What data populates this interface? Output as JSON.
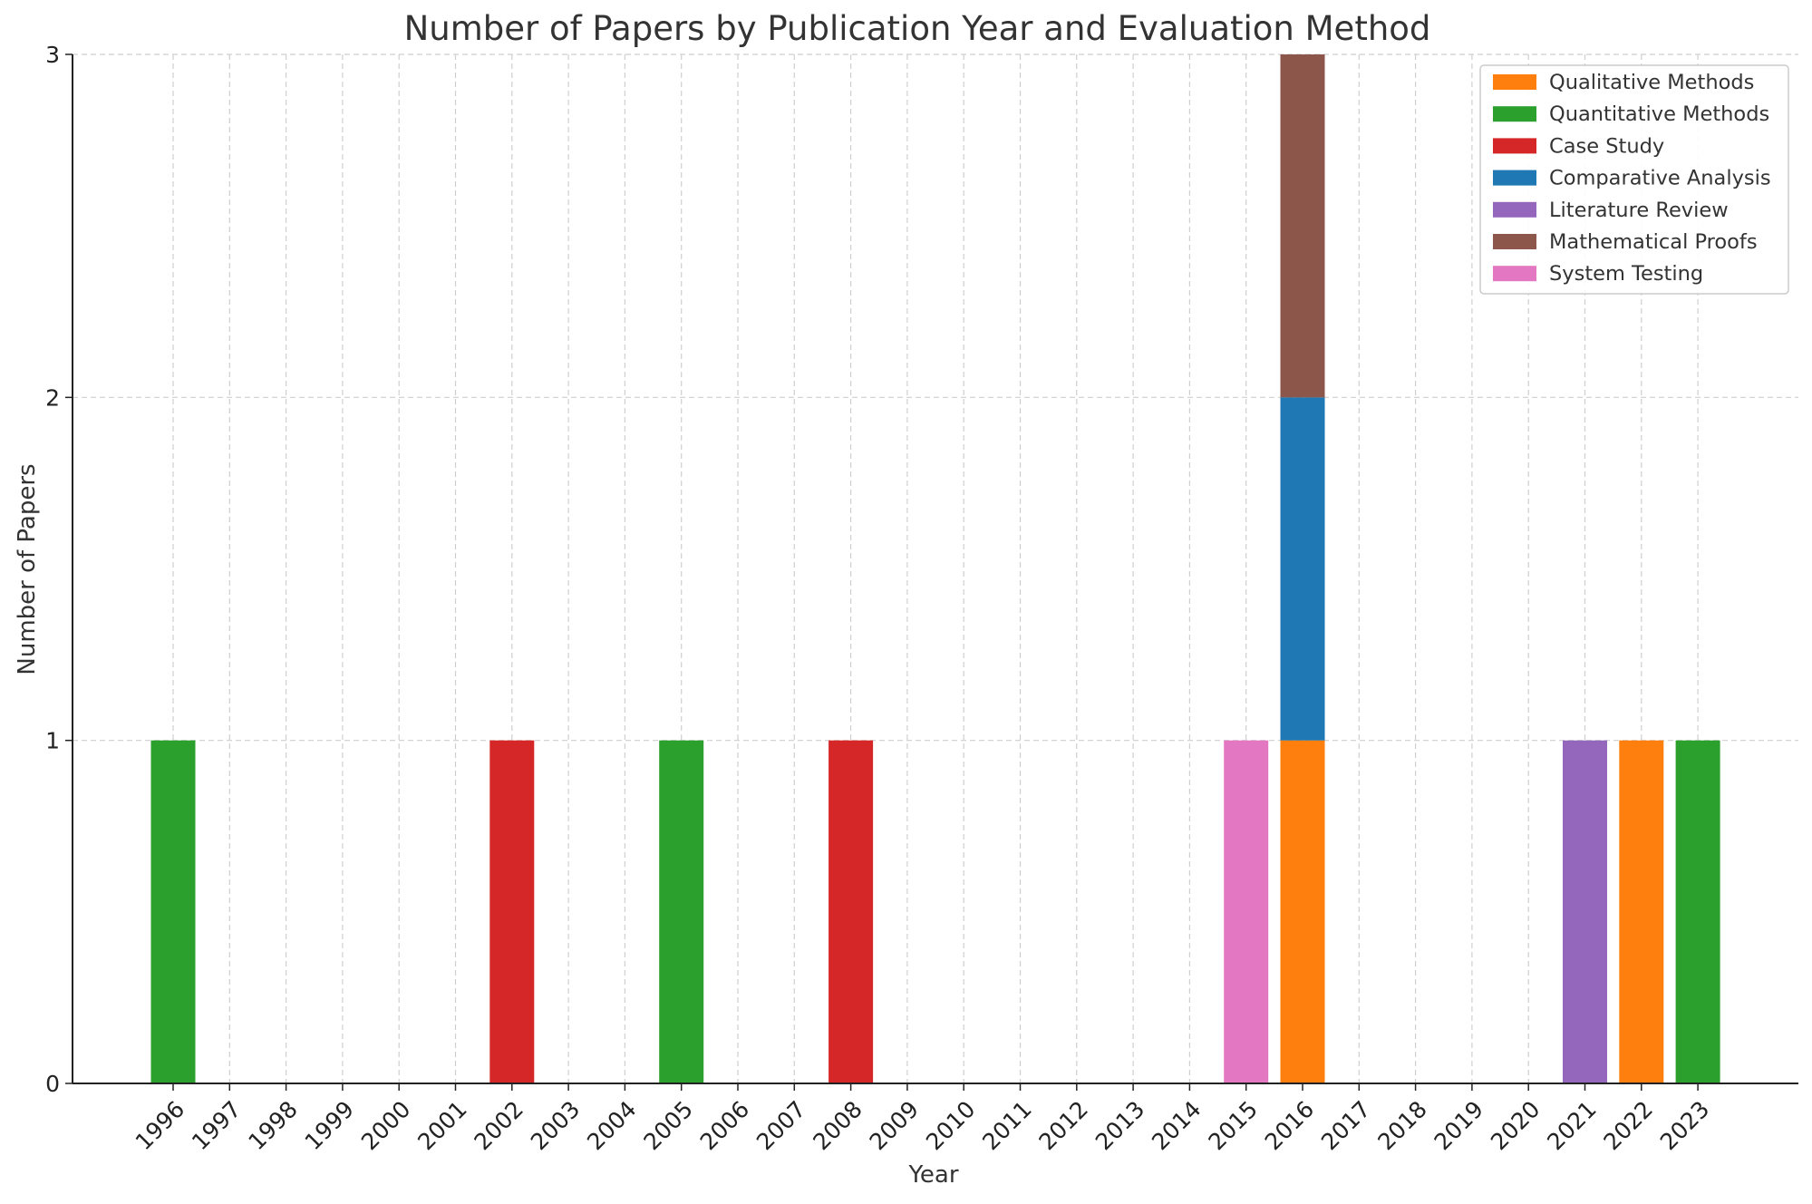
{
  "chart_data": {
    "type": "bar",
    "stacked": true,
    "title": "Number of Papers by Publication Year and Evaluation Method",
    "xlabel": "Year",
    "ylabel": "Number of Papers",
    "ylim": [
      0,
      3
    ],
    "yticks": [
      "0",
      "1",
      "2",
      "3"
    ],
    "grid": true,
    "legend_position": "top-right",
    "categories": [
      "1996",
      "1997",
      "1998",
      "1999",
      "2000",
      "2001",
      "2002",
      "2003",
      "2004",
      "2005",
      "2006",
      "2007",
      "2008",
      "2009",
      "2010",
      "2011",
      "2012",
      "2013",
      "2014",
      "2015",
      "2016",
      "2017",
      "2018",
      "2019",
      "2020",
      "2021",
      "2022",
      "2023"
    ],
    "series": [
      {
        "name": "Qualitative Methods",
        "color": "#ff7f0e",
        "values": [
          0,
          0,
          0,
          0,
          0,
          0,
          0,
          0,
          0,
          0,
          0,
          0,
          0,
          0,
          0,
          0,
          0,
          0,
          0,
          0,
          1,
          0,
          0,
          0,
          0,
          0,
          1,
          0
        ]
      },
      {
        "name": "Quantitative Methods",
        "color": "#2ca02c",
        "values": [
          1,
          0,
          0,
          0,
          0,
          0,
          0,
          0,
          0,
          1,
          0,
          0,
          0,
          0,
          0,
          0,
          0,
          0,
          0,
          0,
          0,
          0,
          0,
          0,
          0,
          0,
          0,
          1
        ]
      },
      {
        "name": "Case Study",
        "color": "#d62728",
        "values": [
          0,
          0,
          0,
          0,
          0,
          0,
          1,
          0,
          0,
          0,
          0,
          0,
          1,
          0,
          0,
          0,
          0,
          0,
          0,
          0,
          0,
          0,
          0,
          0,
          0,
          0,
          0,
          0
        ]
      },
      {
        "name": "Comparative Analysis",
        "color": "#1f77b4",
        "values": [
          0,
          0,
          0,
          0,
          0,
          0,
          0,
          0,
          0,
          0,
          0,
          0,
          0,
          0,
          0,
          0,
          0,
          0,
          0,
          0,
          1,
          0,
          0,
          0,
          0,
          0,
          0,
          0
        ]
      },
      {
        "name": "Literature Review",
        "color": "#9467bd",
        "values": [
          0,
          0,
          0,
          0,
          0,
          0,
          0,
          0,
          0,
          0,
          0,
          0,
          0,
          0,
          0,
          0,
          0,
          0,
          0,
          0,
          0,
          0,
          0,
          0,
          0,
          1,
          0,
          0
        ]
      },
      {
        "name": "Mathematical Proofs",
        "color": "#8c564b",
        "values": [
          0,
          0,
          0,
          0,
          0,
          0,
          0,
          0,
          0,
          0,
          0,
          0,
          0,
          0,
          0,
          0,
          0,
          0,
          0,
          0,
          1,
          0,
          0,
          0,
          0,
          0,
          0,
          0
        ]
      },
      {
        "name": "System Testing",
        "color": "#e377c2",
        "values": [
          0,
          0,
          0,
          0,
          0,
          0,
          0,
          0,
          0,
          0,
          0,
          0,
          0,
          0,
          0,
          0,
          0,
          0,
          0,
          1,
          0,
          0,
          0,
          0,
          0,
          0,
          0,
          0
        ]
      }
    ]
  }
}
